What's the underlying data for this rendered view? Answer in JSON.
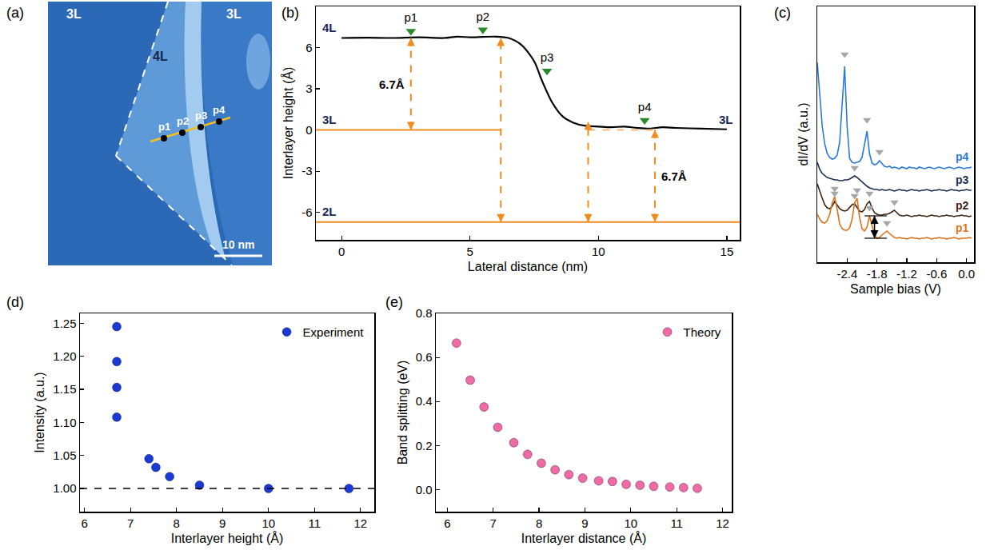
{
  "chart_data": [
    {
      "type": "image",
      "title": "(a)",
      "region_labels": [
        "3L",
        "3L",
        "4L"
      ],
      "point_labels": [
        "p1",
        "p2",
        "p3",
        "p4"
      ],
      "scale_bar": "10 nm"
    },
    {
      "type": "line",
      "title": "(b)",
      "x_label": "Lateral distance (nm)",
      "y_label": "Interlayer height (Å)",
      "xlim": [
        -1,
        15.5
      ],
      "xticks": [
        0,
        5,
        10,
        15
      ],
      "ylim": [
        -8,
        9
      ],
      "yticks": [
        -6,
        -3,
        0,
        3,
        6
      ],
      "color": "#000000",
      "x": [
        0,
        1,
        2,
        3,
        4,
        4.5,
        5,
        5.5,
        6,
        6.5,
        7,
        7.5,
        7.8,
        8.2,
        8.6,
        9,
        9.5,
        10,
        10.5,
        11,
        11.5,
        12,
        12.5,
        13,
        14,
        15
      ],
      "values": [
        6.7,
        6.72,
        6.7,
        6.75,
        6.7,
        6.8,
        6.75,
        6.78,
        6.8,
        6.7,
        6.2,
        5.0,
        3.6,
        2.0,
        1.0,
        0.55,
        0.3,
        0.25,
        0.2,
        0.25,
        0.15,
        0.1,
        0.2,
        0.15,
        0.1,
        0.05
      ],
      "levels": [
        {
          "label": "4L",
          "y": 6.7,
          "side": "left"
        },
        {
          "label": "3L",
          "y": 0,
          "x0": -1,
          "x1": 6.2,
          "color": "#f28c1e",
          "line_style": "solid",
          "side": "left"
        },
        {
          "label": "2L",
          "y": -6.7,
          "x0": -1,
          "x1": 15.5,
          "color": "#f28c1e",
          "line_style": "solid",
          "side": "left"
        },
        {
          "label": "3L",
          "y": 0,
          "x0": 9.6,
          "x1": 12.2,
          "color": "#f5b97a",
          "line_style": "dash",
          "side": "right"
        }
      ],
      "arrows": [
        {
          "x": 2.7,
          "y0": 0,
          "y1": 6.7,
          "label": "6.7Å",
          "side": "left",
          "color": "#f28c1e"
        },
        {
          "x": 6.2,
          "y0": -6.7,
          "y1": 6.7,
          "color": "#f28c1e"
        },
        {
          "x": 9.6,
          "y0": -6.7,
          "y1": 0.6,
          "color": "#f28c1e"
        },
        {
          "x": 12.2,
          "y0": -6.7,
          "y1": 0,
          "label": "6.7Å",
          "side": "right",
          "color": "#f28c1e"
        }
      ],
      "markers": [
        {
          "label": "p1",
          "x": 2.7,
          "y": 7.2,
          "color": "#2a8a2a"
        },
        {
          "label": "p2",
          "x": 5.5,
          "y": 7.3,
          "color": "#2a8a2a"
        },
        {
          "label": "p3",
          "x": 8.0,
          "y": 4.3,
          "color": "#2a8a2a"
        },
        {
          "label": "p4",
          "x": 11.8,
          "y": 0.7,
          "color": "#2a8a2a"
        }
      ]
    },
    {
      "type": "line",
      "title": "(c)",
      "x_label": "Sample bias (V)",
      "y_label": "dI/dV (a.u.)",
      "xlim": [
        -3.0,
        0.15
      ],
      "xticks": [
        -2.4,
        -1.8,
        -1.2,
        -0.6,
        {
          "value": 0,
          "label": "0.0"
        }
      ],
      "ylim": [
        0,
        32
      ],
      "tick_labels": "x",
      "x": [
        -3.0,
        -2.95,
        -2.9,
        -2.85,
        -2.8,
        -2.75,
        -2.7,
        -2.65,
        -2.6,
        -2.55,
        -2.5,
        -2.45,
        -2.4,
        -2.35,
        -2.3,
        -2.25,
        -2.2,
        -2.15,
        -2.1,
        -2.05,
        -2.0,
        -1.95,
        -1.9,
        -1.85,
        -1.8,
        -1.75,
        -1.7,
        -1.65,
        -1.6,
        -1.55,
        -1.5,
        -1.45,
        -1.4,
        -1.35,
        -1.3,
        -1.25,
        -1.2,
        -1.15,
        -1.1,
        -1.05,
        -1.0,
        -0.95,
        -0.9,
        -0.85,
        -0.8,
        -0.75,
        -0.7,
        -0.65,
        -0.6,
        -0.55,
        -0.5,
        -0.45,
        -0.4,
        -0.35,
        -0.3,
        -0.25,
        -0.2,
        -0.15,
        -0.1,
        -0.05,
        0.0,
        0.05,
        0.1
      ],
      "series": [
        {
          "name": "p4",
          "color": "#2a7ad6",
          "values": [
            25,
            21,
            17,
            14.8,
            13.6,
            13.1,
            12.9,
            13.0,
            13.4,
            15.0,
            19.5,
            24.5,
            17.0,
            13.0,
            12.5,
            12.4,
            12.5,
            12.6,
            13.1,
            14.6,
            16.4,
            13.6,
            12.4,
            12.2,
            12.3,
            12.7,
            12.3,
            12.0,
            11.9,
            12.0,
            11.8,
            11.9,
            11.8,
            11.7,
            11.9,
            11.8,
            11.7,
            11.9,
            11.8,
            11.8,
            11.7,
            11.9,
            11.8,
            11.7,
            11.8,
            11.9,
            11.8,
            11.7,
            11.8,
            11.9,
            11.8,
            11.7,
            11.8,
            11.9,
            11.8,
            11.7,
            11.8,
            11.9,
            11.8,
            11.7,
            11.8,
            11.8,
            11.9
          ],
          "peaks": [
            {
              "x": -2.45,
              "y": 26.0
            },
            {
              "x": -2.0,
              "y": 17.8
            },
            {
              "x": -1.75,
              "y": 13.8
            }
          ]
        },
        {
          "name": "p3",
          "color": "#1c2e4f",
          "values": [
            12.5,
            11.6,
            11.1,
            10.8,
            10.6,
            10.5,
            10.4,
            10.3,
            10.3,
            10.2,
            10.2,
            10.3,
            10.3,
            10.4,
            10.6,
            10.8,
            10.6,
            10.3,
            10.0,
            9.7,
            9.5,
            9.3,
            9.2,
            9.1,
            9.1,
            9.0,
            9.1,
            9.0,
            9.0,
            9.1,
            9.0,
            8.9,
            9.0,
            9.1,
            9.0,
            9.0,
            8.9,
            9.0,
            9.1,
            9.0,
            9.0,
            8.9,
            9.0,
            9.0,
            9.1,
            9.0,
            8.9,
            9.0,
            9.0,
            9.1,
            9.0,
            9.0,
            8.9,
            9.0,
            9.1,
            9.0,
            9.0,
            8.9,
            9.0,
            9.0,
            9.1,
            9.0,
            9.0
          ],
          "peaks": [
            {
              "x": -2.25,
              "y": 11.8
            }
          ]
        },
        {
          "name": "p2",
          "color": "#3f2412",
          "values": [
            9.8,
            8.8,
            8.0,
            7.2,
            6.8,
            6.7,
            7.0,
            7.6,
            7.1,
            6.7,
            6.5,
            6.4,
            6.5,
            6.8,
            7.2,
            7.3,
            6.8,
            6.4,
            6.3,
            6.6,
            7.3,
            7.6,
            6.8,
            6.2,
            6.0,
            5.9,
            5.9,
            6.0,
            6.0,
            6.1,
            6.3,
            6.5,
            6.2,
            5.9,
            5.8,
            5.8,
            5.9,
            5.8,
            5.7,
            5.8,
            5.8,
            5.9,
            5.8,
            5.8,
            5.7,
            5.8,
            5.9,
            5.8,
            5.8,
            5.7,
            5.8,
            5.8,
            5.9,
            5.8,
            5.8,
            5.7,
            5.8,
            5.8,
            5.9,
            5.8,
            5.8,
            5.7,
            5.8
          ],
          "peaks": [
            {
              "x": -2.65,
              "y": 8.6
            },
            {
              "x": -2.25,
              "y": 8.3
            },
            {
              "x": -1.95,
              "y": 8.6
            },
            {
              "x": -1.45,
              "y": 7.5
            }
          ]
        },
        {
          "name": "p1",
          "color": "#d9731c",
          "values": [
            6.0,
            5.4,
            5.0,
            4.9,
            5.2,
            6.0,
            7.4,
            8.2,
            6.6,
            4.8,
            4.2,
            4.0,
            4.0,
            4.3,
            5.4,
            7.4,
            8.0,
            5.6,
            4.2,
            3.9,
            4.4,
            5.8,
            4.6,
            3.4,
            3.0,
            3.1,
            3.4,
            3.7,
            3.9,
            3.6,
            3.3,
            3.1,
            3.0,
            3.1,
            3.0,
            3.0,
            2.9,
            3.0,
            3.1,
            3.0,
            3.0,
            2.9,
            3.0,
            3.0,
            3.1,
            3.0,
            2.9,
            3.0,
            3.0,
            3.1,
            3.0,
            3.0,
            2.9,
            3.0,
            3.0,
            3.1,
            3.0,
            2.9,
            3.0,
            3.0,
            3.0,
            3.1,
            3.0
          ],
          "peaks": [
            {
              "x": -2.65,
              "y": 9.2
            },
            {
              "x": -2.2,
              "y": 9.0
            },
            {
              "x": -1.95,
              "y": 6.8
            },
            {
              "x": -1.6,
              "y": 4.9
            }
          ]
        }
      ],
      "bracket": {
        "x": -1.85,
        "x0": -2.05,
        "x1": -1.6,
        "y0": 3.0,
        "y1": 5.8
      }
    },
    {
      "type": "scatter",
      "title": "(d)",
      "x_label": "Interlayer height (Å)",
      "y_label": "Intensity (a.u.)",
      "xlim": [
        5.9,
        12.3
      ],
      "xticks": [
        6,
        7,
        8,
        9,
        10,
        11,
        12
      ],
      "ylim": [
        0.965,
        1.265
      ],
      "yticks": [
        {
          "value": 1,
          "label": "1.00"
        },
        1.05,
        {
          "value": 1.1,
          "label": "1.10"
        },
        1.15,
        {
          "value": 1.2,
          "label": "1.20"
        },
        1.25
      ],
      "legend": "upper right",
      "reference_line": 1,
      "series": [
        {
          "name": "Experiment",
          "color": "#1a3ad8",
          "marker": "circle",
          "x": [
            6.7,
            6.7,
            6.7,
            6.7,
            7.4,
            7.55,
            7.85,
            8.5,
            10.0,
            11.75
          ],
          "values": [
            1.245,
            1.192,
            1.153,
            1.108,
            1.045,
            1.032,
            1.018,
            1.005,
            1.0,
            1.0
          ]
        }
      ]
    },
    {
      "type": "scatter",
      "title": "(e)",
      "x_label": "Interlayer distance (Å)",
      "y_label": "Band splitting (eV)",
      "xlim": [
        5.75,
        12.2
      ],
      "xticks": [
        6,
        7,
        8,
        9,
        10,
        11,
        12
      ],
      "ylim": [
        -0.1,
        0.8
      ],
      "yticks": [
        {
          "value": 0,
          "label": "0.0"
        },
        0.2,
        0.4,
        0.6,
        0.8
      ],
      "legend": "upper right",
      "series": [
        {
          "name": "Theory",
          "color": "#f06aa8",
          "marker": "circle",
          "x": [
            6.2,
            6.5,
            6.8,
            7.1,
            7.45,
            7.75,
            8.05,
            8.35,
            8.65,
            8.95,
            9.3,
            9.6,
            9.9,
            10.2,
            10.5,
            10.85,
            11.15,
            11.45
          ],
          "values": [
            0.665,
            0.497,
            0.375,
            0.283,
            0.213,
            0.16,
            0.12,
            0.09,
            0.068,
            0.052,
            0.04,
            0.037,
            0.024,
            0.02,
            0.015,
            0.012,
            0.009,
            0.006
          ]
        }
      ]
    }
  ]
}
